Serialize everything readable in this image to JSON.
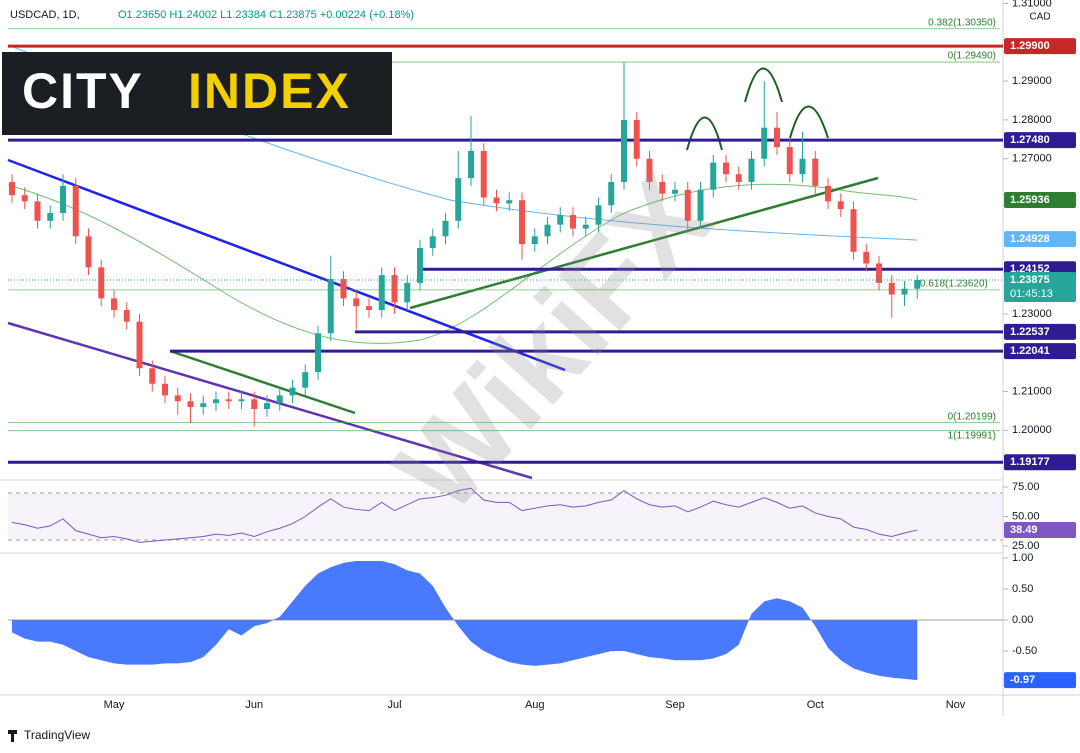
{
  "header": {
    "symbol": "USDCAD, 1D,",
    "ohlc": "O1.23650 H1.24002 L1.23384 C1.23875 +0.00224 (+0.18%)",
    "currency": "CAD"
  },
  "logo": {
    "city": "CITY",
    "index": "INDEX"
  },
  "watermark": "WikiFX",
  "footer": "TradingView",
  "chart_data": [
    {
      "type": "candlestick",
      "categories": [
        null,
        null,
        null,
        null,
        null,
        null,
        null,
        null,
        "May",
        null,
        null,
        null,
        null,
        null,
        null,
        null,
        null,
        null,
        null,
        "Jun",
        null,
        null,
        null,
        null,
        null,
        null,
        null,
        null,
        null,
        null,
        "Jul",
        null,
        null,
        null,
        null,
        null,
        null,
        null,
        null,
        null,
        null,
        "Aug",
        null,
        null,
        null,
        null,
        null,
        null,
        null,
        null,
        null,
        null,
        "Sep",
        null,
        null,
        null,
        null,
        null,
        null,
        null,
        null,
        null,
        null,
        "Oct",
        null,
        null,
        null,
        null,
        null,
        null,
        null,
        null,
        null,
        null,
        "Nov",
        null,
        null,
        null
      ],
      "open": [
        1.264,
        1.2606,
        1.259,
        1.254,
        1.256,
        1.263,
        1.25,
        1.242,
        1.234,
        1.231,
        1.228,
        1.216,
        1.212,
        1.209,
        1.2075,
        1.206,
        1.207,
        1.208,
        1.2075,
        1.208,
        1.2055,
        1.207,
        1.209,
        1.211,
        1.215,
        1.225,
        1.239,
        1.234,
        1.232,
        1.231,
        1.24,
        1.233,
        1.238,
        1.247,
        1.25,
        1.254,
        1.265,
        1.272,
        1.26,
        1.2585,
        1.2593,
        1.248,
        1.25,
        1.253,
        1.2555,
        1.252,
        1.253,
        1.258,
        1.264,
        1.28,
        1.27,
        1.264,
        1.261,
        1.262,
        1.254,
        1.262,
        1.269,
        1.266,
        1.264,
        1.27,
        1.278,
        1.273,
        1.266,
        1.27,
        1.263,
        1.259,
        1.257,
        1.246,
        1.243,
        1.238,
        1.235,
        1.2365,
        null,
        null,
        null,
        null,
        null,
        null
      ],
      "high": [
        1.266,
        1.2626,
        1.261,
        1.258,
        1.266,
        1.265,
        1.252,
        1.244,
        1.236,
        1.233,
        1.23,
        1.218,
        1.214,
        1.211,
        1.2095,
        1.209,
        1.21,
        1.21,
        1.21,
        1.21,
        1.209,
        1.211,
        1.213,
        1.217,
        1.227,
        1.245,
        1.241,
        1.236,
        1.234,
        1.242,
        1.242,
        1.24,
        1.249,
        1.252,
        1.256,
        1.272,
        1.281,
        1.274,
        1.262,
        1.2613,
        1.2613,
        1.252,
        1.255,
        1.2575,
        1.2575,
        1.255,
        1.26,
        1.266,
        1.2949,
        1.282,
        1.272,
        1.266,
        1.264,
        1.264,
        1.264,
        1.271,
        1.271,
        1.268,
        1.272,
        1.29,
        1.282,
        1.275,
        1.277,
        1.272,
        1.265,
        1.261,
        1.259,
        1.248,
        1.245,
        1.24,
        1.2385,
        1.24002,
        null,
        null,
        null,
        null,
        null,
        null
      ],
      "low": [
        1.2586,
        1.257,
        1.252,
        1.252,
        1.254,
        1.248,
        1.24,
        1.232,
        1.229,
        1.226,
        1.214,
        1.21,
        1.207,
        1.204,
        1.202,
        1.204,
        1.205,
        1.2055,
        1.2055,
        1.201,
        1.2035,
        1.205,
        1.207,
        1.209,
        1.213,
        1.223,
        1.232,
        1.226,
        1.229,
        1.229,
        1.23,
        1.231,
        1.236,
        1.245,
        1.248,
        1.252,
        1.263,
        1.258,
        1.2565,
        1.2565,
        1.244,
        1.246,
        1.248,
        1.251,
        1.25,
        1.25,
        1.251,
        1.256,
        1.262,
        1.268,
        1.262,
        1.259,
        1.259,
        1.251,
        1.252,
        1.26,
        1.264,
        1.262,
        1.262,
        1.268,
        1.271,
        1.264,
        1.264,
        1.261,
        1.257,
        1.255,
        1.244,
        1.241,
        1.236,
        1.229,
        1.232,
        1.23384,
        null,
        null,
        null,
        null,
        null,
        null
      ],
      "close": [
        1.2606,
        1.259,
        1.254,
        1.256,
        1.263,
        1.25,
        1.242,
        1.234,
        1.231,
        1.228,
        1.216,
        1.212,
        1.209,
        1.2075,
        1.206,
        1.207,
        1.208,
        1.2075,
        1.208,
        1.2055,
        1.207,
        1.209,
        1.211,
        1.215,
        1.225,
        1.239,
        1.234,
        1.232,
        1.231,
        1.24,
        1.233,
        1.238,
        1.247,
        1.25,
        1.254,
        1.265,
        1.272,
        1.26,
        1.2585,
        1.2593,
        1.248,
        1.25,
        1.253,
        1.2555,
        1.252,
        1.253,
        1.258,
        1.264,
        1.28,
        1.27,
        1.264,
        1.261,
        1.262,
        1.254,
        1.262,
        1.269,
        1.266,
        1.264,
        1.27,
        1.278,
        1.273,
        1.266,
        1.27,
        1.263,
        1.259,
        1.257,
        1.246,
        1.243,
        1.238,
        1.235,
        1.2365,
        1.23875,
        null,
        null,
        null,
        null,
        null,
        null
      ],
      "up_color": "#26a69a",
      "down_color": "#ef5350",
      "ylim": [
        1.1872,
        1.3109
      ],
      "yticks": [
        {
          "value": 1.2,
          "label": "1.20000"
        },
        {
          "value": 1.21,
          "label": "1.21000"
        },
        {
          "value": 1.23,
          "label": "1.23000"
        },
        {
          "value": 1.27,
          "label": "1.27000"
        },
        {
          "value": 1.28,
          "label": "1.28000"
        },
        {
          "value": 1.29,
          "label": "1.29000"
        },
        {
          "value": 1.31,
          "label": "1.31000"
        }
      ],
      "levels": [
        {
          "value": 1.299,
          "label": "1.29900",
          "color": "#c62828",
          "line": true
        },
        {
          "value": 1.2748,
          "label": "1.27480",
          "color": "#311b92",
          "line": true
        },
        {
          "value": 1.25936,
          "label": "1.25936",
          "color": "#2e7d32",
          "line": false
        },
        {
          "value": 1.24928,
          "label": "1.24928",
          "color": "#64b5f6",
          "line": false
        },
        {
          "value": 1.24152,
          "label": "1.24152",
          "color": "#311b92",
          "line": true
        },
        {
          "value": 1.22537,
          "label": "1.22537",
          "color": "#311b92",
          "line": true
        },
        {
          "value": 1.22041,
          "label": "1.22041",
          "color": "#311b92",
          "line": true
        },
        {
          "value": 1.19177,
          "label": "1.19177",
          "color": "#311b92",
          "line": true
        }
      ],
      "fibs": [
        {
          "value": 1.3035,
          "label": "0.382(1.30350)"
        },
        {
          "value": 1.2949,
          "label": "0(1.29490)"
        },
        {
          "value": 1.2362,
          "label": "0.618(1.23620)"
        },
        {
          "value": 1.20199,
          "label": "0(1.20199)"
        },
        {
          "value": 1.19991,
          "label": "1(1.19991)"
        }
      ],
      "countdown": "01:45:13",
      "last_color": "#26a69a"
    },
    {
      "type": "line",
      "values": [
        45,
        43,
        40,
        42,
        48,
        38,
        35,
        32,
        33,
        31,
        28,
        29,
        30,
        31,
        32,
        33,
        35,
        34,
        36,
        33,
        37,
        40,
        44,
        50,
        58,
        65,
        58,
        56,
        55,
        62,
        55,
        60,
        65,
        66,
        68,
        72,
        74,
        64,
        62,
        62,
        55,
        57,
        59,
        60,
        58,
        59,
        62,
        64,
        72,
        65,
        60,
        58,
        59,
        54,
        58,
        63,
        60,
        58,
        62,
        66,
        62,
        57,
        59,
        53,
        50,
        48,
        41,
        39,
        35,
        33,
        36,
        38.49,
        null,
        null,
        null,
        null,
        null,
        null
      ],
      "color": "#7e57c2",
      "ylim": [
        19,
        81
      ],
      "yticks": [
        {
          "value": 25,
          "label": "25.00"
        },
        {
          "value": 50,
          "label": "50.00"
        },
        {
          "value": 75,
          "label": "75.00"
        }
      ],
      "bands": [
        30,
        70
      ]
    },
    {
      "type": "area",
      "values": [
        -0.2,
        -0.3,
        -0.35,
        -0.35,
        -0.4,
        -0.5,
        -0.6,
        -0.65,
        -0.7,
        -0.72,
        -0.72,
        -0.72,
        -0.7,
        -0.7,
        -0.68,
        -0.6,
        -0.4,
        -0.15,
        -0.25,
        -0.1,
        -0.05,
        0.05,
        0.3,
        0.55,
        0.75,
        0.85,
        0.92,
        0.95,
        0.95,
        0.95,
        0.9,
        0.8,
        0.75,
        0.55,
        0.2,
        -0.1,
        -0.35,
        -0.5,
        -0.6,
        -0.68,
        -0.72,
        -0.74,
        -0.72,
        -0.7,
        -0.65,
        -0.6,
        -0.55,
        -0.5,
        -0.5,
        -0.55,
        -0.6,
        -0.62,
        -0.65,
        -0.65,
        -0.65,
        -0.62,
        -0.55,
        -0.4,
        0.1,
        0.3,
        0.35,
        0.3,
        0.2,
        -0.1,
        -0.45,
        -0.65,
        -0.78,
        -0.85,
        -0.9,
        -0.93,
        -0.95,
        -0.97,
        null,
        null,
        null,
        null,
        null,
        null
      ],
      "color": "#2962ff",
      "ylim": [
        -1.21,
        1.08
      ],
      "yticks": [
        {
          "value": -0.5,
          "label": "-0.50"
        },
        {
          "value": 0,
          "label": "0.00"
        },
        {
          "value": 0.5,
          "label": "0.50"
        },
        {
          "value": 1,
          "label": "1.00"
        }
      ]
    }
  ]
}
